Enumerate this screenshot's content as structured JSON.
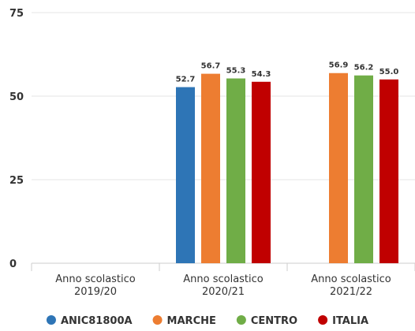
{
  "chart_data": {
    "type": "bar",
    "categories": [
      [
        "Anno scolastico",
        "2019/20"
      ],
      [
        "Anno scolastico",
        "2020/21"
      ],
      [
        "Anno scolastico",
        "2021/22"
      ]
    ],
    "series": [
      {
        "name": "ANIC81800A",
        "color": "#2e75b6",
        "values": [
          null,
          52.7,
          null
        ],
        "labels": [
          null,
          "52.7",
          null
        ]
      },
      {
        "name": "MARCHE",
        "color": "#ed7d31",
        "values": [
          null,
          56.7,
          56.9
        ],
        "labels": [
          null,
          "56.7",
          "56.9"
        ]
      },
      {
        "name": "CENTRO",
        "color": "#70ad47",
        "values": [
          null,
          55.3,
          56.2
        ],
        "labels": [
          null,
          "55.3",
          "56.2"
        ]
      },
      {
        "name": "ITALIA",
        "color": "#c00000",
        "values": [
          null,
          54.3,
          55.0
        ],
        "labels": [
          null,
          "54.3",
          "55.0"
        ]
      }
    ],
    "ylim": [
      0,
      75
    ],
    "yticks": [
      0,
      25,
      50,
      75
    ],
    "grid": true,
    "legend": "bottom"
  }
}
